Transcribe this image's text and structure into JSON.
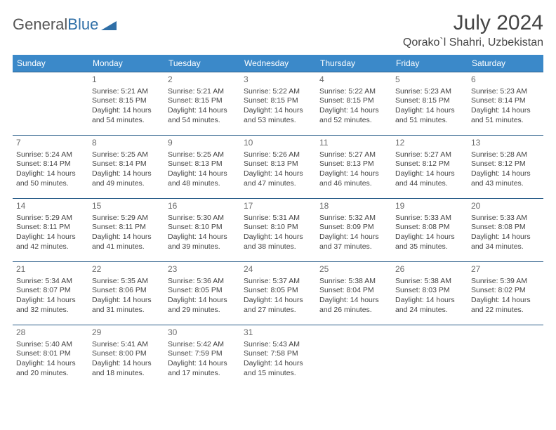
{
  "brand": {
    "part1": "General",
    "part2": "Blue"
  },
  "title": "July 2024",
  "location": "Qorako`l Shahri, Uzbekistan",
  "colors": {
    "header_bg": "#3b89c9",
    "header_text": "#ffffff",
    "row_border": "#2b5e8a",
    "brand_blue": "#2f6fa7",
    "body_text": "#444444"
  },
  "day_headers": [
    "Sunday",
    "Monday",
    "Tuesday",
    "Wednesday",
    "Thursday",
    "Friday",
    "Saturday"
  ],
  "weeks": [
    [
      null,
      {
        "n": "1",
        "sr": "5:21 AM",
        "ss": "8:15 PM",
        "dl": "14 hours and 54 minutes."
      },
      {
        "n": "2",
        "sr": "5:21 AM",
        "ss": "8:15 PM",
        "dl": "14 hours and 54 minutes."
      },
      {
        "n": "3",
        "sr": "5:22 AM",
        "ss": "8:15 PM",
        "dl": "14 hours and 53 minutes."
      },
      {
        "n": "4",
        "sr": "5:22 AM",
        "ss": "8:15 PM",
        "dl": "14 hours and 52 minutes."
      },
      {
        "n": "5",
        "sr": "5:23 AM",
        "ss": "8:15 PM",
        "dl": "14 hours and 51 minutes."
      },
      {
        "n": "6",
        "sr": "5:23 AM",
        "ss": "8:14 PM",
        "dl": "14 hours and 51 minutes."
      }
    ],
    [
      {
        "n": "7",
        "sr": "5:24 AM",
        "ss": "8:14 PM",
        "dl": "14 hours and 50 minutes."
      },
      {
        "n": "8",
        "sr": "5:25 AM",
        "ss": "8:14 PM",
        "dl": "14 hours and 49 minutes."
      },
      {
        "n": "9",
        "sr": "5:25 AM",
        "ss": "8:13 PM",
        "dl": "14 hours and 48 minutes."
      },
      {
        "n": "10",
        "sr": "5:26 AM",
        "ss": "8:13 PM",
        "dl": "14 hours and 47 minutes."
      },
      {
        "n": "11",
        "sr": "5:27 AM",
        "ss": "8:13 PM",
        "dl": "14 hours and 46 minutes."
      },
      {
        "n": "12",
        "sr": "5:27 AM",
        "ss": "8:12 PM",
        "dl": "14 hours and 44 minutes."
      },
      {
        "n": "13",
        "sr": "5:28 AM",
        "ss": "8:12 PM",
        "dl": "14 hours and 43 minutes."
      }
    ],
    [
      {
        "n": "14",
        "sr": "5:29 AM",
        "ss": "8:11 PM",
        "dl": "14 hours and 42 minutes."
      },
      {
        "n": "15",
        "sr": "5:29 AM",
        "ss": "8:11 PM",
        "dl": "14 hours and 41 minutes."
      },
      {
        "n": "16",
        "sr": "5:30 AM",
        "ss": "8:10 PM",
        "dl": "14 hours and 39 minutes."
      },
      {
        "n": "17",
        "sr": "5:31 AM",
        "ss": "8:10 PM",
        "dl": "14 hours and 38 minutes."
      },
      {
        "n": "18",
        "sr": "5:32 AM",
        "ss": "8:09 PM",
        "dl": "14 hours and 37 minutes."
      },
      {
        "n": "19",
        "sr": "5:33 AM",
        "ss": "8:08 PM",
        "dl": "14 hours and 35 minutes."
      },
      {
        "n": "20",
        "sr": "5:33 AM",
        "ss": "8:08 PM",
        "dl": "14 hours and 34 minutes."
      }
    ],
    [
      {
        "n": "21",
        "sr": "5:34 AM",
        "ss": "8:07 PM",
        "dl": "14 hours and 32 minutes."
      },
      {
        "n": "22",
        "sr": "5:35 AM",
        "ss": "8:06 PM",
        "dl": "14 hours and 31 minutes."
      },
      {
        "n": "23",
        "sr": "5:36 AM",
        "ss": "8:05 PM",
        "dl": "14 hours and 29 minutes."
      },
      {
        "n": "24",
        "sr": "5:37 AM",
        "ss": "8:05 PM",
        "dl": "14 hours and 27 minutes."
      },
      {
        "n": "25",
        "sr": "5:38 AM",
        "ss": "8:04 PM",
        "dl": "14 hours and 26 minutes."
      },
      {
        "n": "26",
        "sr": "5:38 AM",
        "ss": "8:03 PM",
        "dl": "14 hours and 24 minutes."
      },
      {
        "n": "27",
        "sr": "5:39 AM",
        "ss": "8:02 PM",
        "dl": "14 hours and 22 minutes."
      }
    ],
    [
      {
        "n": "28",
        "sr": "5:40 AM",
        "ss": "8:01 PM",
        "dl": "14 hours and 20 minutes."
      },
      {
        "n": "29",
        "sr": "5:41 AM",
        "ss": "8:00 PM",
        "dl": "14 hours and 18 minutes."
      },
      {
        "n": "30",
        "sr": "5:42 AM",
        "ss": "7:59 PM",
        "dl": "14 hours and 17 minutes."
      },
      {
        "n": "31",
        "sr": "5:43 AM",
        "ss": "7:58 PM",
        "dl": "14 hours and 15 minutes."
      },
      null,
      null,
      null
    ]
  ],
  "labels": {
    "sunrise": "Sunrise: ",
    "sunset": "Sunset: ",
    "daylight": "Daylight: "
  }
}
